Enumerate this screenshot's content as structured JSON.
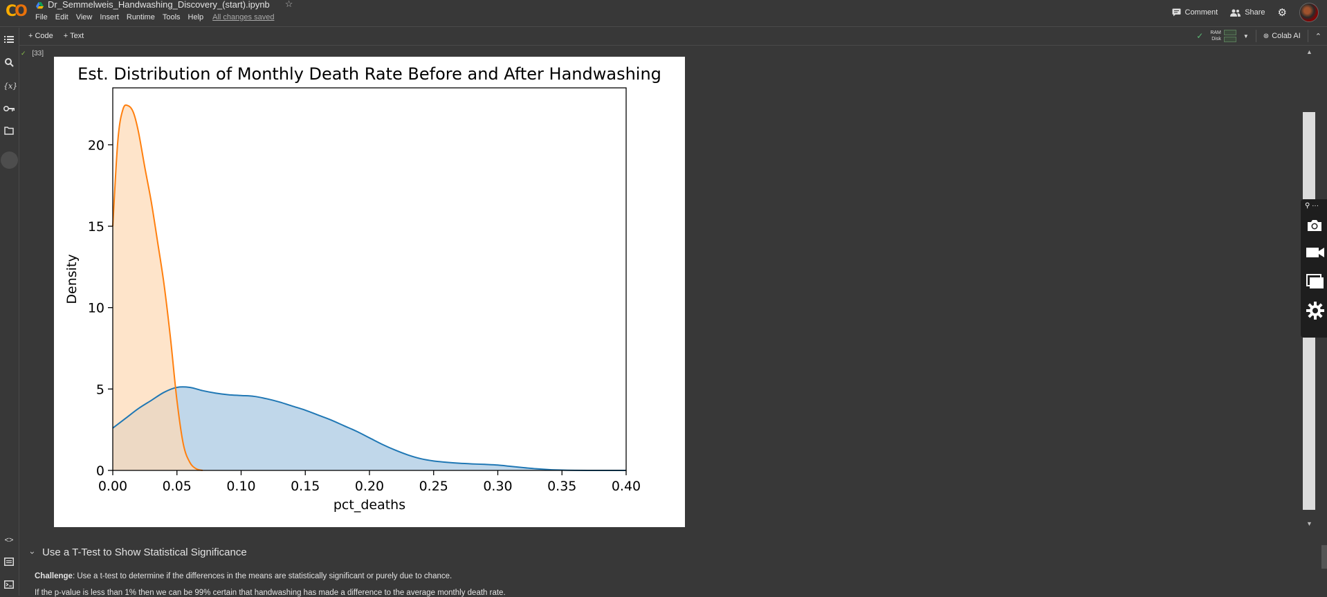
{
  "app": {
    "logo": "CO",
    "notebook_title": "Dr_Semmelweis_Handwashing_Discovery_(start).ipynb",
    "menu": [
      "File",
      "Edit",
      "View",
      "Insert",
      "Runtime",
      "Tools",
      "Help"
    ],
    "save_status": "All changes saved",
    "comment_label": "Comment",
    "share_label": "Share"
  },
  "toolbar": {
    "add_code": "+ Code",
    "add_text": "+ Text",
    "ram_label": "RAM",
    "disk_label": "Disk",
    "colab_ai_label": "Colab AI"
  },
  "cell": {
    "execution_count": "[33]"
  },
  "chart_data": {
    "type": "area",
    "title": "Est. Distribution of Monthly Death Rate Before and After Handwashing",
    "xlabel": "pct_deaths",
    "ylabel": "Density",
    "xlim": [
      0.0,
      0.4
    ],
    "ylim": [
      0,
      23.5
    ],
    "xticks": [
      "0.00",
      "0.05",
      "0.10",
      "0.15",
      "0.20",
      "0.25",
      "0.30",
      "0.35",
      "0.40"
    ],
    "yticks": [
      "0",
      "5",
      "10",
      "15",
      "20"
    ],
    "grid": false,
    "series": [
      {
        "color": "#1f77b4",
        "fill": "#c0d7ea",
        "x": [
          0.0,
          0.01,
          0.02,
          0.03,
          0.04,
          0.05,
          0.06,
          0.07,
          0.08,
          0.09,
          0.1,
          0.11,
          0.12,
          0.13,
          0.14,
          0.15,
          0.16,
          0.17,
          0.18,
          0.19,
          0.2,
          0.21,
          0.22,
          0.23,
          0.24,
          0.25,
          0.26,
          0.27,
          0.28,
          0.29,
          0.3,
          0.31,
          0.32,
          0.33,
          0.34,
          0.35,
          0.36,
          0.37,
          0.38,
          0.39,
          0.4
        ],
        "y": [
          2.6,
          3.2,
          3.8,
          4.3,
          4.8,
          5.1,
          5.1,
          4.9,
          4.75,
          4.65,
          4.6,
          4.55,
          4.4,
          4.2,
          3.95,
          3.7,
          3.4,
          3.1,
          2.75,
          2.4,
          2.0,
          1.6,
          1.25,
          0.95,
          0.72,
          0.58,
          0.5,
          0.44,
          0.4,
          0.37,
          0.33,
          0.25,
          0.17,
          0.1,
          0.05,
          0.02,
          0.005,
          0.0,
          0.0,
          0.0,
          0.0
        ]
      },
      {
        "color": "#ff7f0e",
        "fill": "#fdd9b5",
        "x": [
          0.0,
          0.004,
          0.008,
          0.012,
          0.016,
          0.02,
          0.025,
          0.03,
          0.035,
          0.04,
          0.045,
          0.05,
          0.055,
          0.06,
          0.065,
          0.07
        ],
        "y": [
          15.0,
          20.3,
          22.2,
          22.4,
          22.0,
          20.8,
          18.6,
          16.5,
          14.0,
          11.4,
          8.1,
          4.3,
          1.6,
          0.5,
          0.1,
          0.0
        ]
      }
    ]
  },
  "markdown": {
    "section_title": "Use a T-Test to Show Statistical Significance",
    "challenge_label": "Challenge",
    "challenge_text": ": Use a t-test to determine if the differences in the means are statistically significant or purely due to chance.",
    "line2": "If the p-value is less than 1% then we can be 99% certain that handwashing has made a difference to the average monthly death rate."
  }
}
